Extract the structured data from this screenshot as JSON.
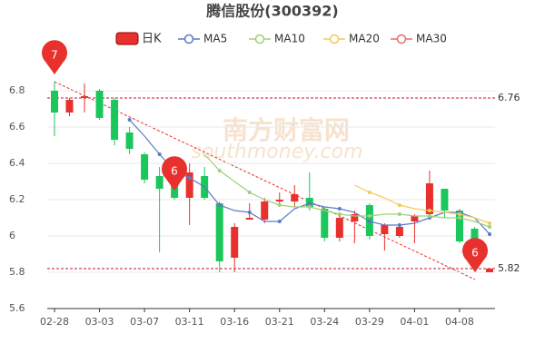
{
  "chart_data": {
    "type": "candlestick",
    "title": "腾信股份(300392)",
    "watermark": "南方财富网",
    "watermark_sub": "southmoney.com",
    "categories": [
      "02-28",
      null,
      null,
      "03-03",
      null,
      null,
      "03-07",
      null,
      null,
      "03-11",
      null,
      null,
      "03-16",
      null,
      null,
      "03-21",
      null,
      null,
      "03-24",
      null,
      null,
      "03-29",
      null,
      null,
      "04-01",
      null,
      null,
      "04-08",
      null,
      null
    ],
    "ylim": [
      5.6,
      7.0
    ],
    "yticks": [
      5.6,
      5.8,
      6,
      6.2,
      6.4,
      6.6,
      6.8
    ],
    "grid": true,
    "ref_lines": [
      6.76,
      5.82
    ],
    "pins": [
      "7",
      "6",
      "6"
    ],
    "up_color": "#e8302c",
    "down_color": "#1ac75b",
    "kline": {
      "name": "日K",
      "open": [
        6.8,
        6.68,
        6.76,
        6.8,
        6.75,
        6.57,
        6.45,
        6.33,
        6.35,
        6.21,
        6.33,
        6.18,
        5.88,
        6.09,
        6.09,
        6.19,
        6.19,
        6.21,
        6.15,
        5.99,
        6.08,
        6.17,
        6.01,
        6.0,
        6.08,
        6.12,
        6.26,
        6.14,
        6.04,
        5.8
      ],
      "close": [
        6.68,
        6.75,
        6.77,
        6.65,
        6.53,
        6.48,
        6.31,
        6.26,
        6.21,
        6.35,
        6.21,
        5.86,
        6.05,
        6.1,
        6.19,
        6.2,
        6.23,
        6.16,
        5.99,
        6.1,
        6.12,
        6.0,
        6.06,
        6.05,
        6.11,
        6.29,
        6.14,
        5.97,
        5.96,
        5.82
      ],
      "high": [
        6.85,
        6.76,
        6.84,
        6.81,
        6.76,
        6.6,
        6.46,
        6.38,
        6.38,
        6.4,
        6.38,
        6.19,
        6.07,
        6.18,
        6.21,
        6.24,
        6.28,
        6.35,
        6.16,
        6.11,
        6.14,
        6.18,
        6.07,
        6.06,
        6.12,
        6.36,
        6.26,
        6.15,
        6.05,
        5.82
      ],
      "low": [
        6.55,
        6.66,
        6.68,
        6.64,
        6.5,
        6.45,
        6.29,
        5.91,
        6.2,
        6.06,
        6.2,
        5.8,
        5.8,
        6.09,
        6.07,
        6.16,
        6.16,
        6.14,
        5.97,
        5.97,
        5.96,
        5.98,
        5.92,
        5.99,
        5.96,
        6.1,
        6.1,
        5.96,
        5.94,
        5.8
      ]
    },
    "series": [
      {
        "name": "MA5",
        "color": "#5b7bc4",
        "values": [
          null,
          null,
          null,
          null,
          null,
          6.64,
          6.55,
          6.45,
          6.36,
          6.32,
          6.27,
          6.17,
          6.14,
          6.13,
          6.08,
          6.08,
          6.15,
          6.18,
          6.16,
          6.15,
          6.13,
          6.08,
          6.06,
          6.06,
          6.07,
          6.1,
          6.13,
          6.13,
          6.1,
          6.01
        ]
      },
      {
        "name": "MA10",
        "color": "#9ed07a",
        "values": [
          null,
          null,
          null,
          null,
          null,
          null,
          null,
          null,
          null,
          null,
          6.45,
          6.36,
          6.3,
          6.24,
          6.2,
          6.17,
          6.16,
          6.16,
          6.14,
          6.12,
          6.11,
          6.11,
          6.12,
          6.12,
          6.11,
          6.11,
          6.1,
          6.1,
          6.08,
          6.05
        ]
      },
      {
        "name": "MA20",
        "color": "#f6c85a",
        "values": [
          null,
          null,
          null,
          null,
          null,
          null,
          null,
          null,
          null,
          null,
          null,
          null,
          null,
          null,
          null,
          null,
          null,
          null,
          null,
          null,
          6.28,
          6.24,
          6.21,
          6.17,
          6.15,
          6.14,
          6.13,
          6.12,
          6.1,
          6.07
        ]
      },
      {
        "name": "MA30",
        "color": "#ee6b6b",
        "values": [
          null,
          null,
          null,
          null,
          null,
          null,
          null,
          null,
          null,
          null,
          null,
          null,
          null,
          null,
          null,
          null,
          null,
          null,
          null,
          null,
          null,
          null,
          null,
          null,
          null,
          null,
          null,
          null,
          null,
          null
        ]
      }
    ]
  }
}
